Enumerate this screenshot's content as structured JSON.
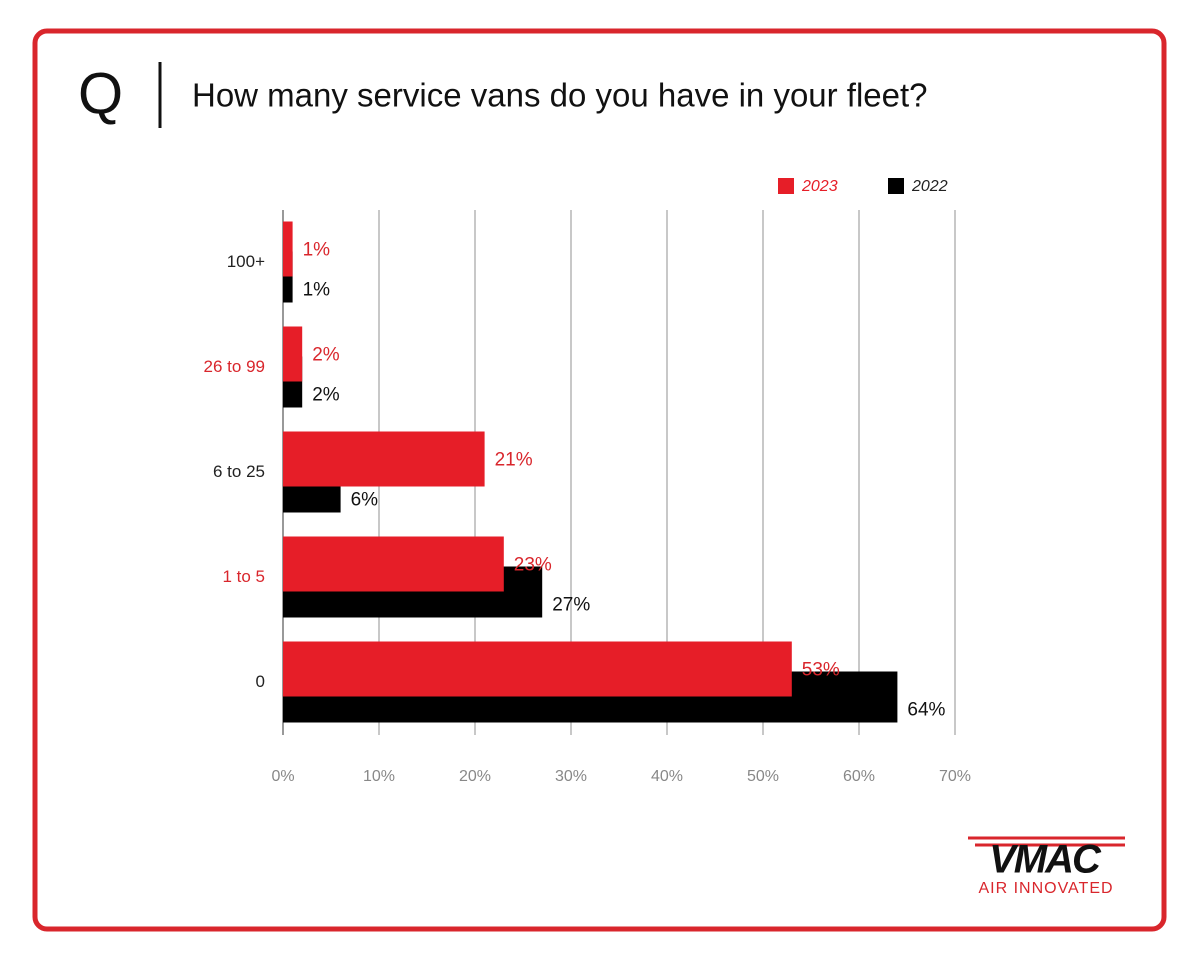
{
  "question_marker": "Q",
  "logo": {
    "brand": "VMAC",
    "tagline": "AIR INNOVATED"
  },
  "chart_data": {
    "type": "bar",
    "orientation": "horizontal",
    "title": "How many service vans do you have in your fleet?",
    "categories": [
      "100+",
      "26 to 99",
      "6 to 25",
      "1 to 5",
      "0"
    ],
    "category_label_colors": [
      "#222222",
      "#d9262c",
      "#222222",
      "#d9262c",
      "#222222"
    ],
    "series": [
      {
        "name": "2023",
        "color": "#e61e28",
        "values": [
          1,
          2,
          21,
          23,
          53
        ],
        "value_labels": [
          "1%",
          "2%",
          "21%",
          "23%",
          "53%"
        ]
      },
      {
        "name": "2022",
        "color": "#000000",
        "values": [
          1,
          2,
          6,
          27,
          64
        ],
        "value_labels": [
          "1%",
          "2%",
          "6%",
          "27%",
          "64%"
        ]
      }
    ],
    "xlim": [
      0,
      70
    ],
    "xticks": [
      {
        "value": 0,
        "label": "0%"
      },
      {
        "value": 10,
        "label": "10%"
      },
      {
        "value": 20,
        "label": "20%"
      },
      {
        "value": 30,
        "label": "30%"
      },
      {
        "value": 40,
        "label": "40%"
      },
      {
        "value": 50,
        "label": "50%"
      },
      {
        "value": 60,
        "label": "60%"
      },
      {
        "value": 70,
        "label": "70%"
      }
    ],
    "grid": true,
    "legend": "top-right"
  }
}
